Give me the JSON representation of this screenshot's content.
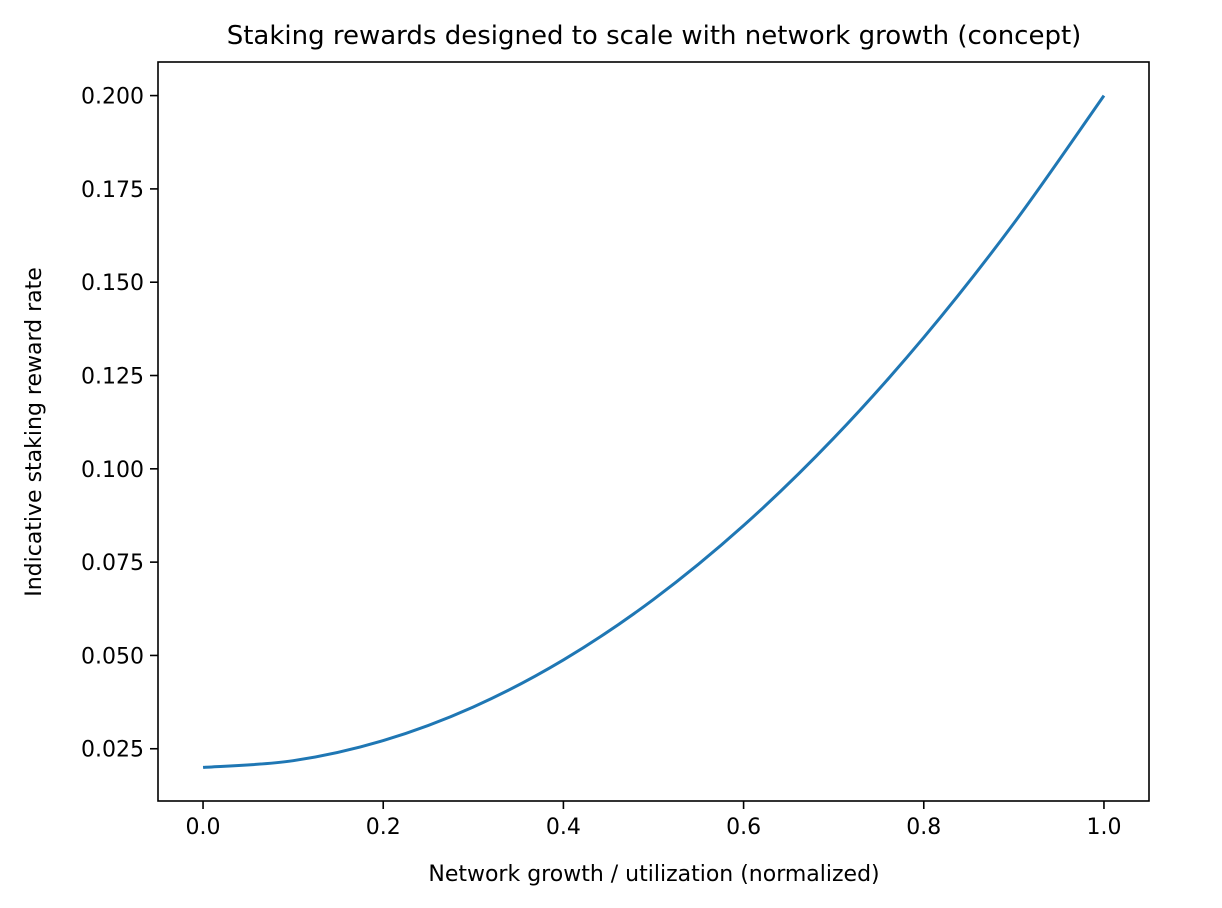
{
  "chart_data": {
    "type": "line",
    "title": "Staking rewards designed to scale with network growth (concept)",
    "xlabel": "Network growth / utilization (normalized)",
    "ylabel": "Indicative staking reward rate",
    "xlim": [
      -0.05,
      1.05
    ],
    "ylim": [
      0.011,
      0.209
    ],
    "xticks": [
      0.0,
      0.2,
      0.4,
      0.6,
      0.8,
      1.0
    ],
    "xtick_labels": [
      "0.0",
      "0.2",
      "0.4",
      "0.6",
      "0.8",
      "1.0"
    ],
    "yticks": [
      0.025,
      0.05,
      0.075,
      0.1,
      0.125,
      0.15,
      0.175,
      0.2
    ],
    "ytick_labels": [
      "0.025",
      "0.050",
      "0.075",
      "0.100",
      "0.125",
      "0.150",
      "0.175",
      "0.200"
    ],
    "grid": false,
    "legend": "none",
    "series": [
      {
        "color": "#1f77b4",
        "x": [
          0.0,
          0.1,
          0.2,
          0.3,
          0.4,
          0.5,
          0.6,
          0.7,
          0.8,
          0.9,
          1.0
        ],
        "y": [
          0.02,
          0.0218,
          0.0272,
          0.0362,
          0.0488,
          0.065,
          0.0848,
          0.1082,
          0.1352,
          0.1658,
          0.2
        ]
      }
    ]
  }
}
